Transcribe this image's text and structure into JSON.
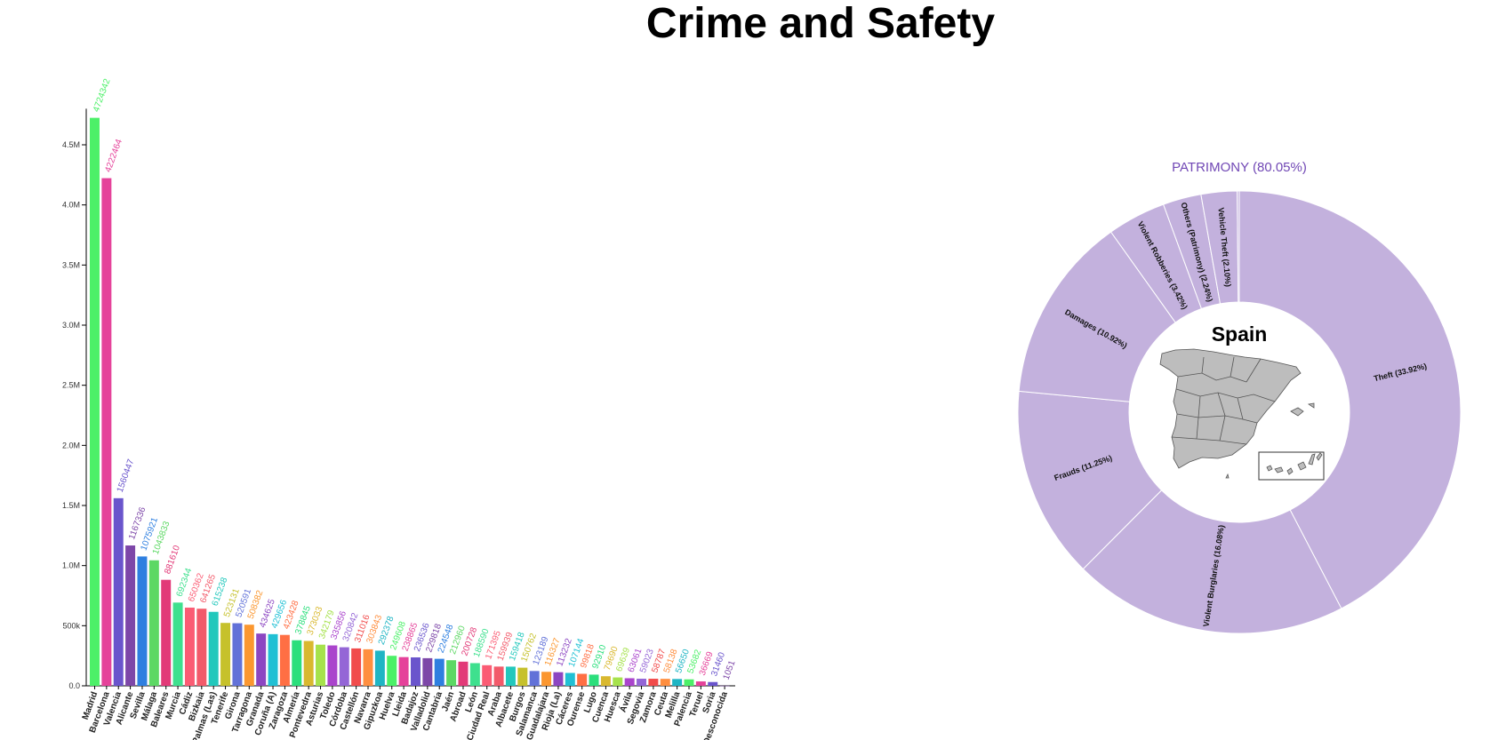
{
  "page": {
    "title": "Crime and Safety"
  },
  "colors": {
    "palette": [
      "#4cf068",
      "#e5429a",
      "#6a55cc",
      "#7d47a8",
      "#2e7fe0",
      "#5dd864",
      "#e23a78",
      "#3ee08e",
      "#fb5c74",
      "#f25a6a",
      "#22c8bc",
      "#c6c12c",
      "#6272d8",
      "#fb9730",
      "#8c46c2",
      "#20c0d4",
      "#ff6f44",
      "#2bdf7c",
      "#d9b82f",
      "#a6e24c",
      "#aa44cc",
      "#9466d6",
      "#f14b4b",
      "#ff8f40",
      "#1fb5c4"
    ],
    "donut_fill": "#c3b1dd",
    "donut_title": "#7148b5",
    "map_fill": "#bdbdbd"
  },
  "chart_data": [
    {
      "type": "bar",
      "title": "",
      "xlabel": "",
      "ylabel": "",
      "ylim": [
        0,
        4800000
      ],
      "yticks": [
        {
          "value": 0,
          "label": "0.0"
        },
        {
          "value": 500000,
          "label": "500k"
        },
        {
          "value": 1000000,
          "label": "1.0M"
        },
        {
          "value": 1500000,
          "label": "1.5M"
        },
        {
          "value": 2000000,
          "label": "2.0M"
        },
        {
          "value": 2500000,
          "label": "2.5M"
        },
        {
          "value": 3000000,
          "label": "3.0M"
        },
        {
          "value": 3500000,
          "label": "3.5M"
        },
        {
          "value": 4000000,
          "label": "4.0M"
        },
        {
          "value": 4500000,
          "label": "4.5M"
        }
      ],
      "categories": [
        "Madrid",
        "Barcelona",
        "Valencia",
        "Alicante",
        "Sevilla",
        "Málaga",
        "Baleares",
        "Murcia",
        "Cádiz",
        "Bizkaia",
        "Palmas (Las)",
        "Tenerife",
        "Girona",
        "Tarragona",
        "Granada",
        "Coruña (A)",
        "Zaragoza",
        "Almería",
        "Pontevedra",
        "Asturias",
        "Toledo",
        "Córdoba",
        "Castellón",
        "Navarra",
        "Gipuzkoa",
        "Huelva",
        "Lleida",
        "Badajoz",
        "Valladolid",
        "Cantabria",
        "Jaén",
        "Abroad",
        "León",
        "Ciudad Real",
        "Araba",
        "Albacete",
        "Burgos",
        "Salamanca",
        "Guadalajara",
        "Rioja (La)",
        "Cáceres",
        "Ourense",
        "Lugo",
        "Cuenca",
        "Huesca",
        "Ávila",
        "Segovia",
        "Zamora",
        "Ceuta",
        "Melilla",
        "Palencia",
        "Teruel",
        "Soria",
        "Desconocida"
      ],
      "values": [
        4724342,
        4222464,
        1560447,
        1167336,
        1075921,
        1043833,
        881610,
        692344,
        650362,
        641265,
        615238,
        523131,
        520591,
        508382,
        434625,
        429656,
        423428,
        378845,
        373033,
        342179,
        335856,
        320842,
        311016,
        303843,
        292378,
        249608,
        238865,
        236536,
        229818,
        224548,
        212960,
        200728,
        188590,
        171395,
        159939,
        159418,
        150762,
        123189,
        116327,
        113232,
        107144,
        99818,
        92910,
        79690,
        69639,
        63061,
        59023,
        58787,
        58138,
        56650,
        53682,
        36669,
        31460,
        1051
      ],
      "value_labels": [
        "4724342",
        "4222464",
        "1560447",
        "1167336",
        "1075921",
        "1043833",
        "881610",
        "692344",
        "650362",
        "641265",
        "615238",
        "523131",
        "520591",
        "508382",
        "434625",
        "429656",
        "423428",
        "378845",
        "373033",
        "342179",
        "335856",
        "320842",
        "311016",
        "303843",
        "292378",
        "249608",
        "238865",
        "236536",
        "229818",
        "224548",
        "212960",
        "200728",
        "188590",
        "171395",
        "159939",
        "159418",
        "150762",
        "123189",
        "116327",
        "113232",
        "107144",
        "99818",
        "92910",
        "79690",
        "69639",
        "63061",
        "59023",
        "58787",
        "58138",
        "56650",
        "53682",
        "36669",
        "31460",
        "1051"
      ]
    },
    {
      "type": "pie",
      "title": "PATRIMONY (80.05%)",
      "center_label": "Spain",
      "slices": [
        {
          "label": "Theft (33.92%)",
          "value": 33.92
        },
        {
          "label": "Violent Burglaries (16.08%)",
          "value": 16.08
        },
        {
          "label": "Frauds (11.25%)",
          "value": 11.25
        },
        {
          "label": "Damages (10.92%)",
          "value": 10.92
        },
        {
          "label": "Violent Robberies (3.42%)",
          "value": 3.42
        },
        {
          "label": "Others (Patrimony) (2.24%)",
          "value": 2.24
        },
        {
          "label": "Vehicle Theft (2.10%)",
          "value": 2.1
        },
        {
          "label": "",
          "value": 0.12
        }
      ]
    }
  ]
}
